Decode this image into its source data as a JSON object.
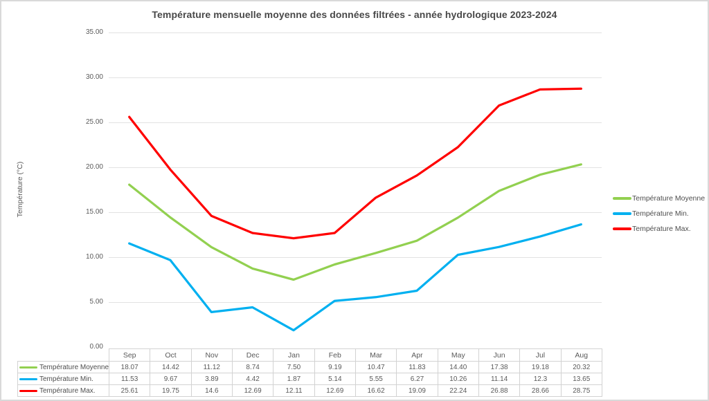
{
  "chart_data": {
    "type": "line",
    "title": "Température mensuelle moyenne des données filtrées - année hydrologique 2023-2024",
    "xlabel": "",
    "ylabel": "Température (°C)",
    "ylim": [
      0,
      35
    ],
    "ytick_step": 5,
    "ytick_labels": [
      "35.00",
      "30.00",
      "25.00",
      "20.00",
      "15.00",
      "10.00",
      "5.00",
      "0.00"
    ],
    "grid": true,
    "legend_position": "right",
    "data_table_shown": true,
    "gridline_color": "#e2e2e2",
    "categories": [
      "Sep",
      "Oct",
      "Nov",
      "Dec",
      "Jan",
      "Feb",
      "Mar",
      "Apr",
      "May",
      "Jun",
      "Jul",
      "Aug"
    ],
    "series": [
      {
        "name": "Température Moyenne",
        "color": "#92D050",
        "values": [
          18.07,
          14.42,
          11.12,
          8.74,
          7.5,
          9.19,
          10.47,
          11.83,
          14.4,
          17.38,
          19.18,
          20.32
        ],
        "values_display": [
          "18.07",
          "14.42",
          "11.12",
          "8.74",
          "7.50",
          "9.19",
          "10.47",
          "11.83",
          "14.40",
          "17.38",
          "19.18",
          "20.32"
        ]
      },
      {
        "name": "Température Min.",
        "color": "#00B0F0",
        "values": [
          11.53,
          9.67,
          3.89,
          4.42,
          1.87,
          5.14,
          5.55,
          6.27,
          10.26,
          11.14,
          12.3,
          13.65
        ],
        "values_display": [
          "11.53",
          "9.67",
          "3.89",
          "4.42",
          "1.87",
          "5.14",
          "5.55",
          "6.27",
          "10.26",
          "11.14",
          "12.3",
          "13.65"
        ]
      },
      {
        "name": "Température Max.",
        "color": "#FF0000",
        "values": [
          25.61,
          19.75,
          14.6,
          12.69,
          12.11,
          12.69,
          16.62,
          19.09,
          22.24,
          26.88,
          28.66,
          28.75
        ],
        "values_display": [
          "25.61",
          "19.75",
          "14.6",
          "12.69",
          "12.11",
          "12.69",
          "16.62",
          "19.09",
          "22.24",
          "26.88",
          "28.66",
          "28.75"
        ]
      }
    ]
  }
}
